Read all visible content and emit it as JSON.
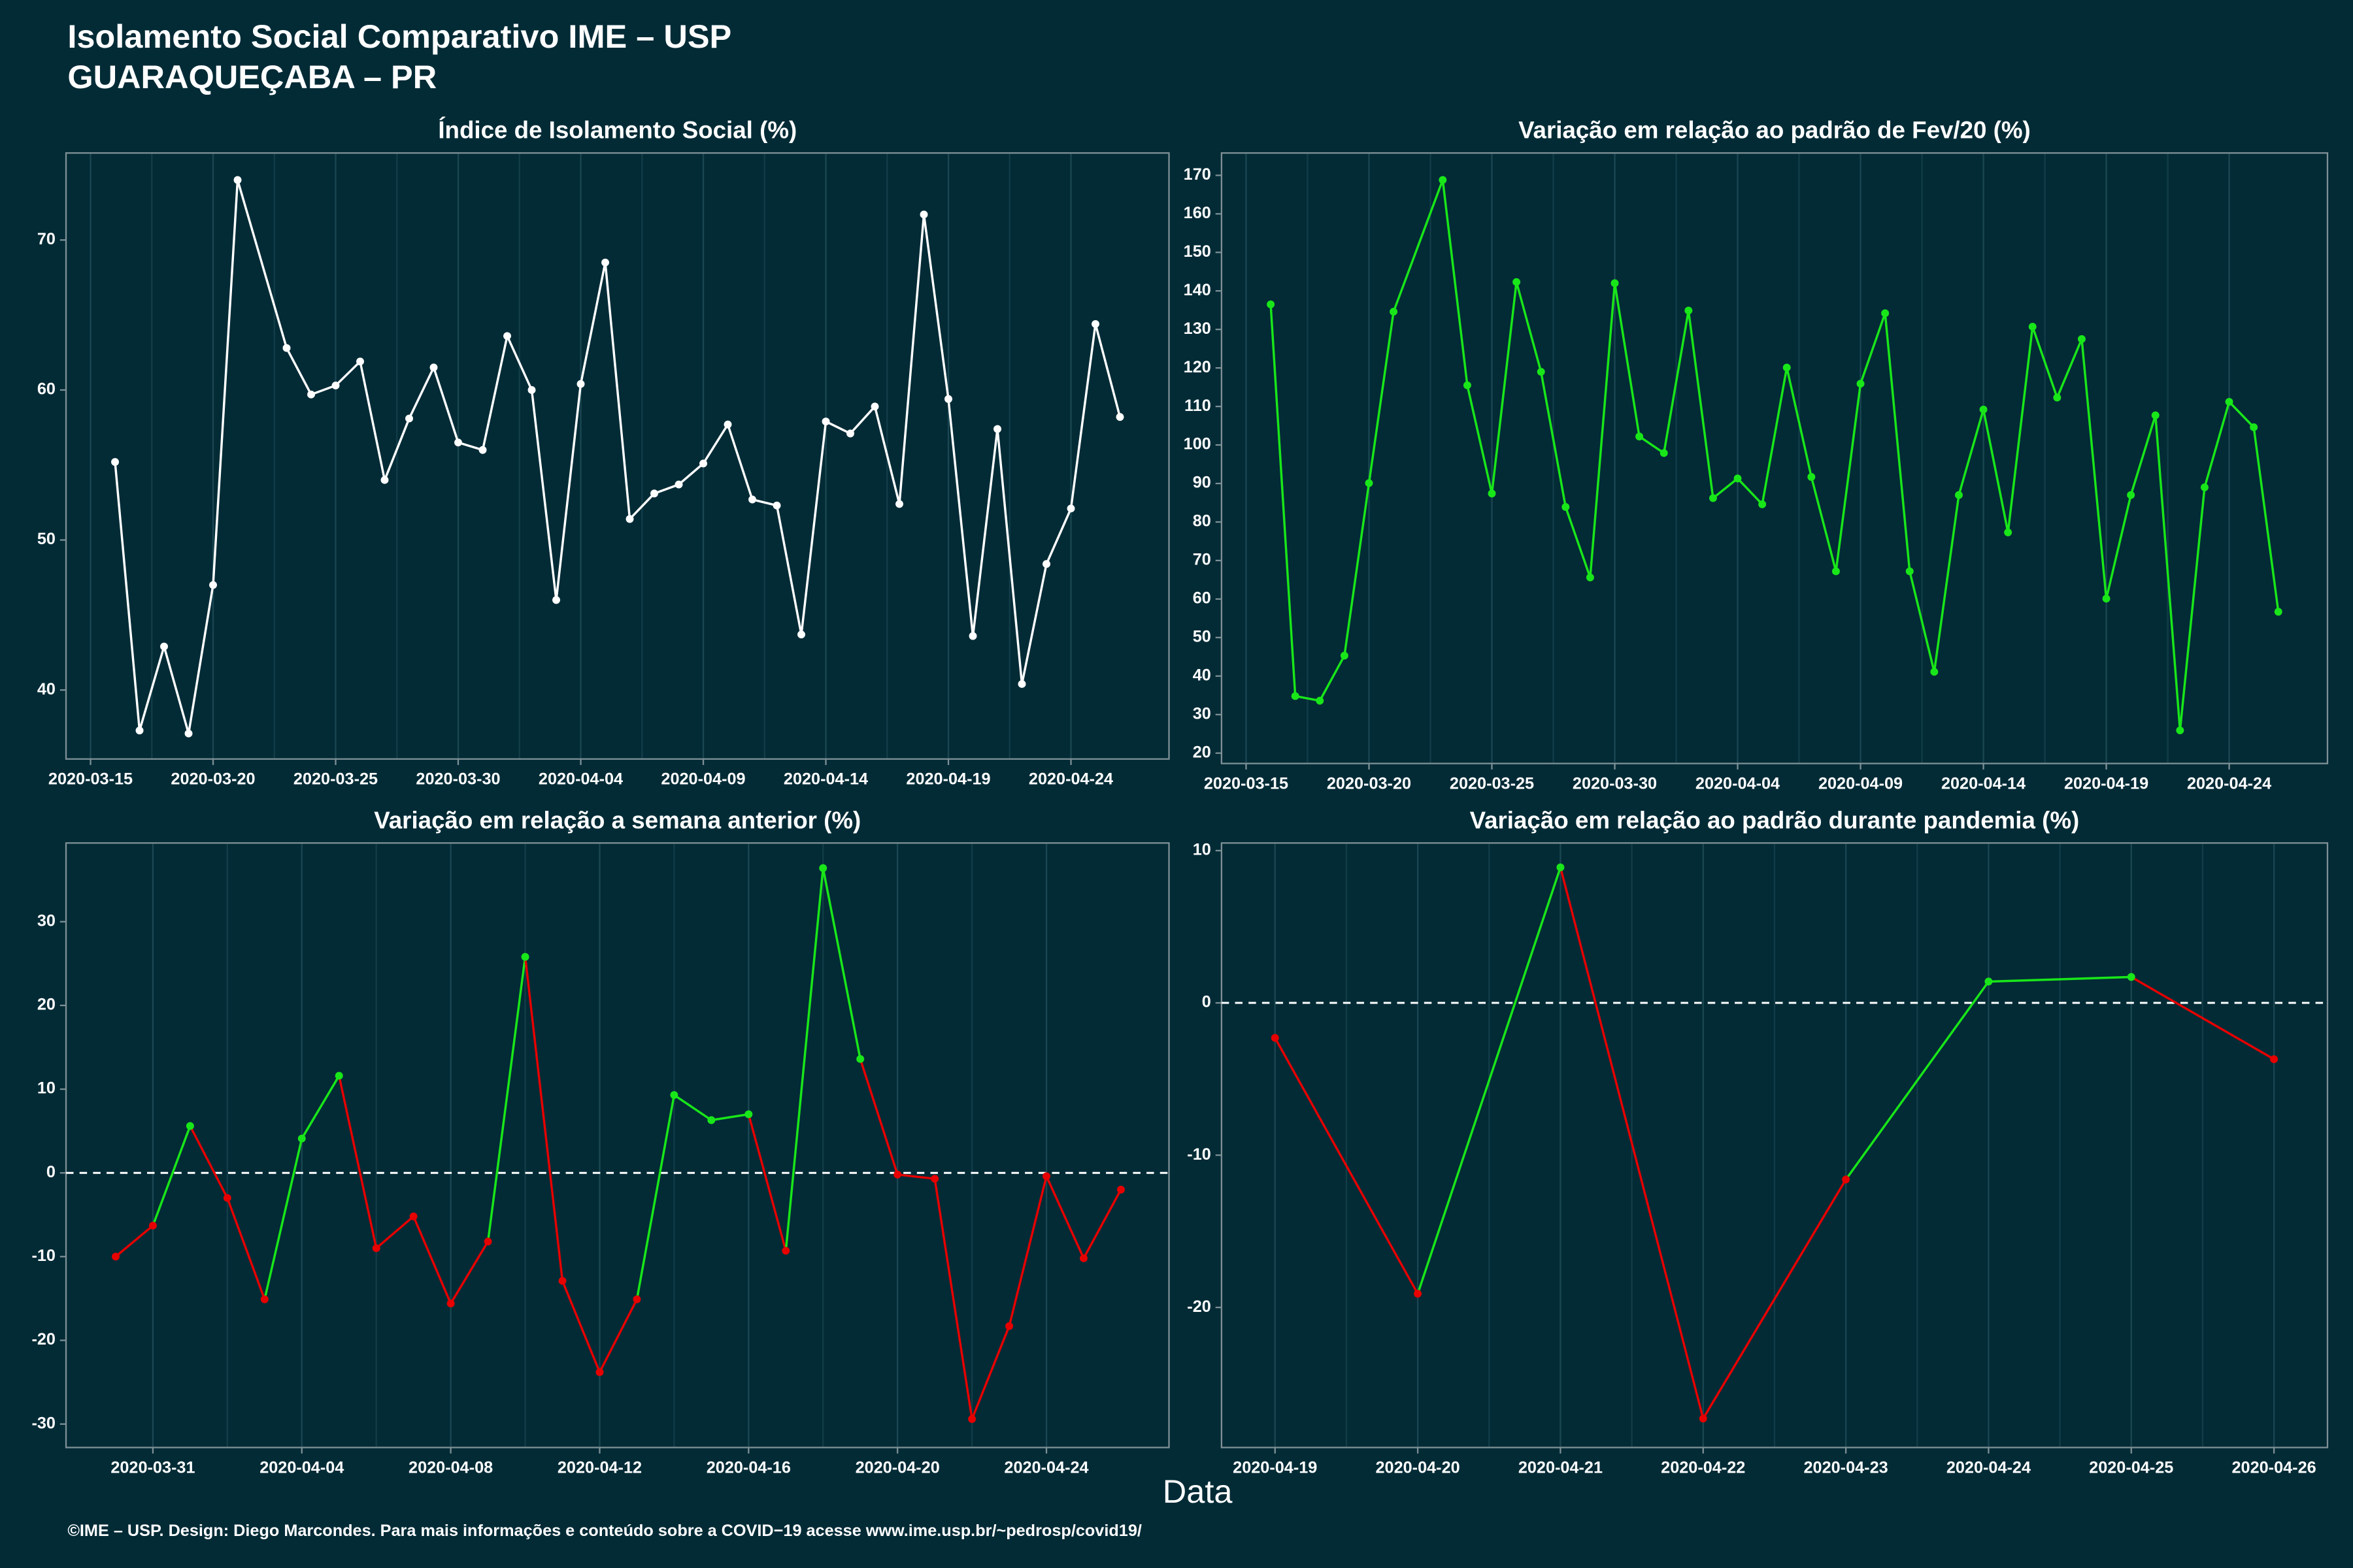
{
  "title": "Isolamento Social Comparativo IME – USP",
  "subtitle": "GUARAQUEÇABA – PR",
  "xlabel": "Data",
  "footer": "©IME – USP. Design: Diego Marcondes. Para mais informações e conteúdo sobre a COVID−19 acesse www.ime.usp.br/~pedrosp/covid19/",
  "chart_data": [
    {
      "type": "line",
      "title": "Índice de Isolamento Social (%)",
      "grid": true,
      "x": [
        "2020-03-16",
        "2020-03-17",
        "2020-03-18",
        "2020-03-19",
        "2020-03-20",
        "2020-03-21",
        "2020-03-23",
        "2020-03-24",
        "2020-03-25",
        "2020-03-26",
        "2020-03-27",
        "2020-03-28",
        "2020-03-29",
        "2020-03-30",
        "2020-03-31",
        "2020-04-01",
        "2020-04-02",
        "2020-04-03",
        "2020-04-04",
        "2020-04-05",
        "2020-04-06",
        "2020-04-07",
        "2020-04-08",
        "2020-04-09",
        "2020-04-10",
        "2020-04-11",
        "2020-04-12",
        "2020-04-13",
        "2020-04-14",
        "2020-04-15",
        "2020-04-16",
        "2020-04-17",
        "2020-04-18",
        "2020-04-19",
        "2020-04-20",
        "2020-04-21",
        "2020-04-22",
        "2020-04-23",
        "2020-04-24",
        "2020-04-25",
        "2020-04-26"
      ],
      "series": [
        {
          "color": "#ffffff",
          "values": [
            55.2,
            37.3,
            42.9,
            37.1,
            47.0,
            74.0,
            62.8,
            59.7,
            60.3,
            61.9,
            54.0,
            58.1,
            61.5,
            56.5,
            56.0,
            63.6,
            60.0,
            46.0,
            60.4,
            68.5,
            51.4,
            53.1,
            53.7,
            55.1,
            57.7,
            52.7,
            52.3,
            43.7,
            57.9,
            57.1,
            58.9,
            52.4,
            71.7,
            59.4,
            43.6,
            57.4,
            40.4,
            48.4,
            52.1,
            64.4,
            58.2
          ]
        }
      ],
      "xlim": [
        "2020-03-14",
        "2020-04-28"
      ],
      "xticks": [
        "2020-03-15",
        "2020-03-20",
        "2020-03-25",
        "2020-03-30",
        "2020-04-04",
        "2020-04-09",
        "2020-04-14",
        "2020-04-19",
        "2020-04-24"
      ],
      "ylim": [
        35.4,
        75.8
      ],
      "yticks": [
        40,
        50,
        60,
        70
      ]
    },
    {
      "type": "line",
      "title": "Variação em relação ao padrão de Fev/20 (%)",
      "grid": true,
      "x": [
        "2020-03-16",
        "2020-03-17",
        "2020-03-18",
        "2020-03-19",
        "2020-03-20",
        "2020-03-21",
        "2020-03-23",
        "2020-03-24",
        "2020-03-25",
        "2020-03-26",
        "2020-03-27",
        "2020-03-28",
        "2020-03-29",
        "2020-03-30",
        "2020-03-31",
        "2020-04-01",
        "2020-04-02",
        "2020-04-03",
        "2020-04-04",
        "2020-04-05",
        "2020-04-06",
        "2020-04-07",
        "2020-04-08",
        "2020-04-09",
        "2020-04-10",
        "2020-04-11",
        "2020-04-12",
        "2020-04-13",
        "2020-04-14",
        "2020-04-15",
        "2020-04-16",
        "2020-04-17",
        "2020-04-18",
        "2020-04-19",
        "2020-04-20",
        "2020-04-21",
        "2020-04-22",
        "2020-04-23",
        "2020-04-24",
        "2020-04-25",
        "2020-04-26"
      ],
      "series": [
        {
          "color": "#19e619",
          "values": [
            136.5,
            34.8,
            33.6,
            45.3,
            90.1,
            134.6,
            168.8,
            115.5,
            87.4,
            142.3,
            119.0,
            83.9,
            65.6,
            142.0,
            102.2,
            97.9,
            134.9,
            86.2,
            91.3,
            84.6,
            120.1,
            91.7,
            67.2,
            115.9,
            134.2,
            67.2,
            41.1,
            87.0,
            109.2,
            77.3,
            130.7,
            112.3,
            127.5,
            60.1,
            87.0,
            107.7,
            25.9,
            89.0,
            111.2,
            104.6,
            56.7
          ]
        }
      ],
      "xlim": [
        "2020-03-14",
        "2020-04-28"
      ],
      "xticks": [
        "2020-03-15",
        "2020-03-20",
        "2020-03-25",
        "2020-03-30",
        "2020-04-04",
        "2020-04-09",
        "2020-04-14",
        "2020-04-19",
        "2020-04-24"
      ],
      "ylim": [
        17.3,
        175.8
      ],
      "yticks": [
        20,
        30,
        40,
        50,
        60,
        70,
        80,
        90,
        100,
        110,
        120,
        130,
        140,
        150,
        160,
        170
      ]
    },
    {
      "type": "line",
      "title": "Variação em relação a semana anterior (%)",
      "grid": true,
      "hline": 0,
      "x": [
        "2020-03-30",
        "2020-03-31",
        "2020-04-01",
        "2020-04-02",
        "2020-04-03",
        "2020-04-04",
        "2020-04-05",
        "2020-04-06",
        "2020-04-07",
        "2020-04-08",
        "2020-04-09",
        "2020-04-10",
        "2020-04-11",
        "2020-04-12",
        "2020-04-13",
        "2020-04-14",
        "2020-04-15",
        "2020-04-16",
        "2020-04-17",
        "2020-04-18",
        "2020-04-19",
        "2020-04-20",
        "2020-04-21",
        "2020-04-22",
        "2020-04-23",
        "2020-04-24",
        "2020-04-25",
        "2020-04-26"
      ],
      "series": [
        {
          "colors": [
            "#e60000",
            "#e60000",
            "#19e619",
            "#e60000",
            "#e60000",
            "#19e619",
            "#19e619",
            "#e60000",
            "#e60000",
            "#e60000",
            "#e60000",
            "#19e619",
            "#e60000",
            "#e60000",
            "#e60000",
            "#19e619",
            "#19e619",
            "#19e619",
            "#e60000",
            "#19e619",
            "#19e619",
            "#e60000",
            "#e60000",
            "#e60000",
            "#e60000",
            "#e60000",
            "#e60000",
            "#e60000"
          ],
          "values": [
            -10.0,
            -6.3,
            5.6,
            -3.0,
            -15.1,
            4.1,
            11.6,
            -9.0,
            -5.2,
            -15.6,
            -8.2,
            25.8,
            -12.9,
            -23.8,
            -15.1,
            9.3,
            6.3,
            7.0,
            -9.3,
            36.4,
            13.6,
            -0.2,
            -0.7,
            -29.4,
            -18.3,
            -0.4,
            -10.2,
            -2.0
          ]
        }
      ],
      "xlim": [
        "2020-03-28T16:00",
        "2020-04-27T07:00"
      ],
      "xticks": [
        "2020-03-31",
        "2020-04-04",
        "2020-04-08",
        "2020-04-12",
        "2020-04-16",
        "2020-04-20",
        "2020-04-24"
      ],
      "ylim": [
        -32.8,
        39.4
      ],
      "yticks": [
        -30,
        -20,
        -10,
        0,
        10,
        20,
        30
      ]
    },
    {
      "type": "line",
      "title": "Variação em relação ao padrão durante pandemia (%)",
      "grid": true,
      "hline": 0,
      "x": [
        "2020-04-19",
        "2020-04-20",
        "2020-04-21",
        "2020-04-22",
        "2020-04-23",
        "2020-04-24",
        "2020-04-25",
        "2020-04-26"
      ],
      "series": [
        {
          "colors": [
            "#e60000",
            "#e60000",
            "#19e619",
            "#e60000",
            "#e60000",
            "#19e619",
            "#19e619",
            "#e60000"
          ],
          "values": [
            -2.3,
            -19.1,
            8.9,
            -27.3,
            -11.6,
            1.4,
            1.7,
            -3.7
          ]
        }
      ],
      "xlim": [
        "2020-04-18T15:00",
        "2020-04-26T09:00"
      ],
      "xticks": [
        "2020-04-19",
        "2020-04-20",
        "2020-04-21",
        "2020-04-22",
        "2020-04-23",
        "2020-04-24",
        "2020-04-25",
        "2020-04-26"
      ],
      "ylim": [
        -29.2,
        10.5
      ],
      "yticks": [
        -20,
        -10,
        0,
        10
      ]
    }
  ]
}
